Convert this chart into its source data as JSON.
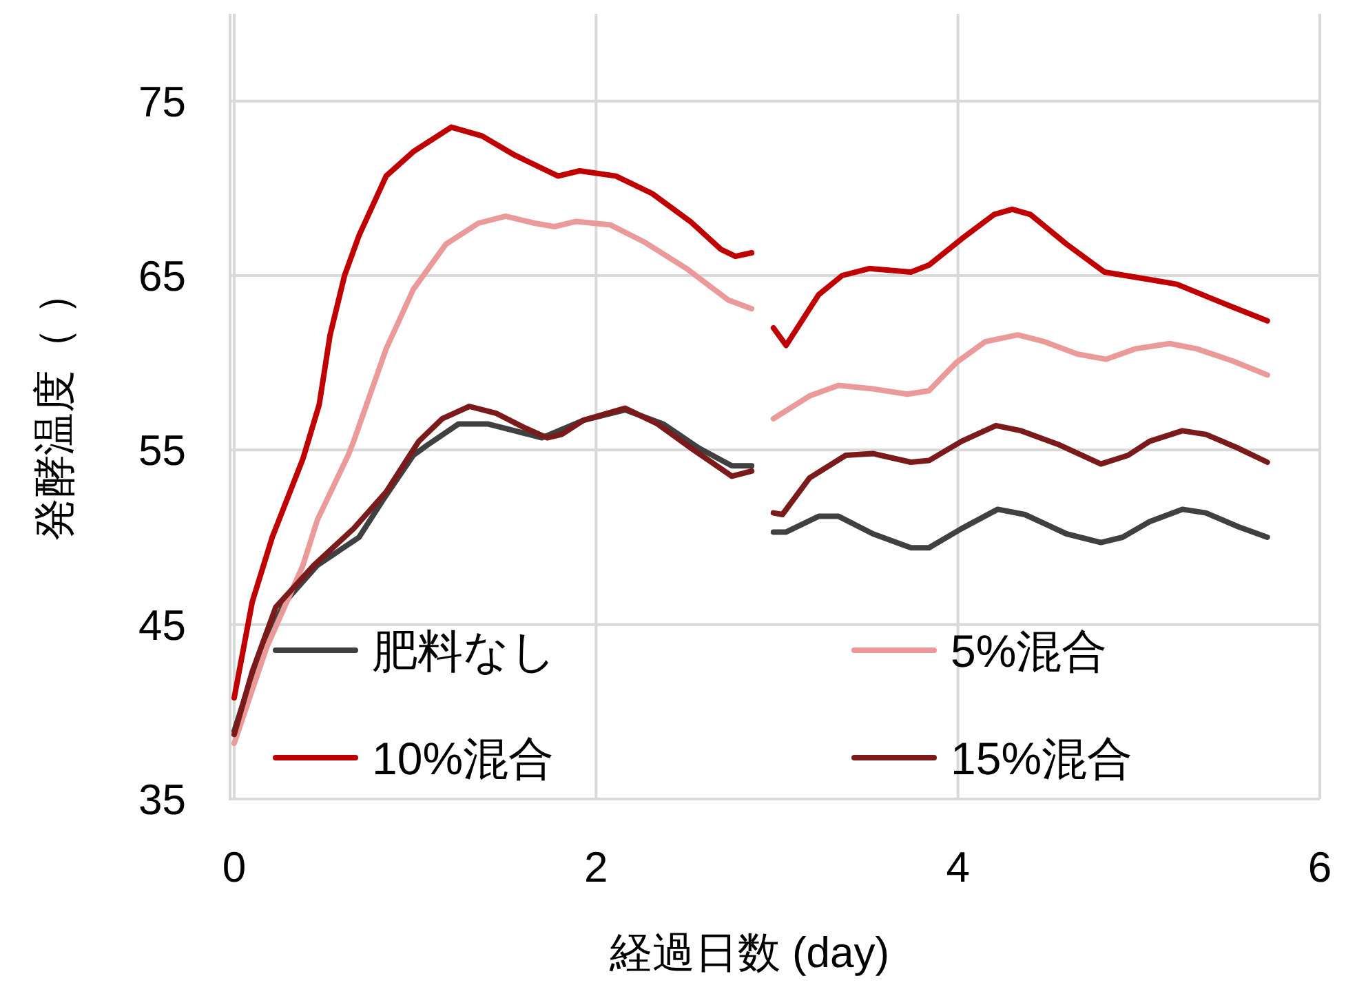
{
  "chart_data": {
    "type": "line",
    "xlabel": "経過日数 (day)",
    "ylabel": "発酵温度（ ）",
    "xlim": [
      0,
      6
    ],
    "ylim": [
      35,
      80
    ],
    "xticks": [
      0,
      2,
      4,
      6
    ],
    "yticks": [
      35,
      45,
      55,
      65,
      75
    ],
    "grid": true,
    "legend": "bottom",
    "marker": "none",
    "line_style": "solid",
    "series": [
      {
        "name": "肥料なし",
        "color": "#404040",
        "x": [
          0,
          0.13,
          0.28,
          0.46,
          0.69,
          0.82,
          0.99,
          1.07,
          1.24,
          1.4,
          1.55,
          1.7,
          1.93,
          2.16,
          2.37,
          2.57,
          2.75,
          2.86,
          2.92,
          2.98,
          3.05,
          3.23,
          3.34,
          3.53,
          3.74,
          3.84,
          4.02,
          4.22,
          4.37,
          4.6,
          4.79,
          4.91,
          5.06,
          5.24,
          5.37,
          5.55,
          5.71
        ],
        "values": [
          38.9,
          43.1,
          46.3,
          48.4,
          50.0,
          52.1,
          54.7,
          55.3,
          56.5,
          56.5,
          56.1,
          55.7,
          56.7,
          57.3,
          56.5,
          55.1,
          54.1,
          54.1,
          null,
          50.3,
          50.3,
          51.2,
          51.2,
          50.2,
          49.4,
          49.4,
          50.5,
          51.6,
          51.3,
          50.2,
          49.7,
          50.0,
          50.9,
          51.6,
          51.4,
          50.6,
          50.0
        ]
      },
      {
        "name": "5%混合",
        "color": "#eb9a9a",
        "x": [
          0,
          0.18,
          0.38,
          0.46,
          0.63,
          0.66,
          0.84,
          0.99,
          1.17,
          1.35,
          1.5,
          1.66,
          1.77,
          1.89,
          2.08,
          2.27,
          2.5,
          2.73,
          2.86,
          2.92,
          2.98,
          3.18,
          3.34,
          3.53,
          3.72,
          3.84,
          3.99,
          4.15,
          4.33,
          4.48,
          4.66,
          4.82,
          4.98,
          5.17,
          5.32,
          5.52,
          5.71
        ],
        "values": [
          38.2,
          43.7,
          48.4,
          51.0,
          54.7,
          55.5,
          60.8,
          64.2,
          66.8,
          68.0,
          68.4,
          68.0,
          67.8,
          68.1,
          67.9,
          66.9,
          65.4,
          63.6,
          63.1,
          null,
          56.8,
          58.1,
          58.7,
          58.5,
          58.2,
          58.4,
          60.0,
          61.2,
          61.6,
          61.2,
          60.5,
          60.2,
          60.8,
          61.1,
          60.8,
          60.1,
          59.3
        ]
      },
      {
        "name": "10%混合",
        "color": "#c00000",
        "x": [
          0,
          0.1,
          0.21,
          0.38,
          0.47,
          0.53,
          0.61,
          0.69,
          0.84,
          0.99,
          1.2,
          1.37,
          1.55,
          1.79,
          1.91,
          2.11,
          2.31,
          2.52,
          2.69,
          2.77,
          2.86,
          2.92,
          2.98,
          3.05,
          3.23,
          3.36,
          3.51,
          3.74,
          3.84,
          4.02,
          4.2,
          4.3,
          4.4,
          4.6,
          4.81,
          5.04,
          5.21,
          5.47,
          5.71
        ],
        "values": [
          40.8,
          46.3,
          50.0,
          54.5,
          57.6,
          61.6,
          65.0,
          67.3,
          70.7,
          72.1,
          73.5,
          73.0,
          71.9,
          70.7,
          71.0,
          70.7,
          69.7,
          68.1,
          66.5,
          66.1,
          66.3,
          null,
          62.0,
          61.0,
          63.9,
          65.0,
          65.4,
          65.2,
          65.6,
          67.1,
          68.5,
          68.8,
          68.5,
          66.8,
          65.2,
          64.8,
          64.5,
          63.4,
          62.4
        ]
      },
      {
        "name": "15%混合",
        "color": "#7a1a1a",
        "x": [
          0,
          0.1,
          0.23,
          0.44,
          0.66,
          0.84,
          0.97,
          1.02,
          1.15,
          1.3,
          1.45,
          1.6,
          1.73,
          1.81,
          1.93,
          2.16,
          2.34,
          2.54,
          2.75,
          2.86,
          2.92,
          2.98,
          3.03,
          3.18,
          3.38,
          3.53,
          3.74,
          3.84,
          4.02,
          4.21,
          4.35,
          4.56,
          4.79,
          4.94,
          5.06,
          5.24,
          5.37,
          5.55,
          5.71
        ],
        "values": [
          38.7,
          42.3,
          46.0,
          48.4,
          50.5,
          52.6,
          54.7,
          55.5,
          56.8,
          57.5,
          57.1,
          56.3,
          55.7,
          55.9,
          56.7,
          57.4,
          56.5,
          55.0,
          53.5,
          53.8,
          null,
          51.4,
          51.3,
          53.4,
          54.7,
          54.8,
          54.3,
          54.4,
          55.5,
          56.4,
          56.1,
          55.3,
          54.2,
          54.7,
          55.5,
          56.1,
          55.9,
          55.1,
          54.3
        ]
      }
    ]
  }
}
